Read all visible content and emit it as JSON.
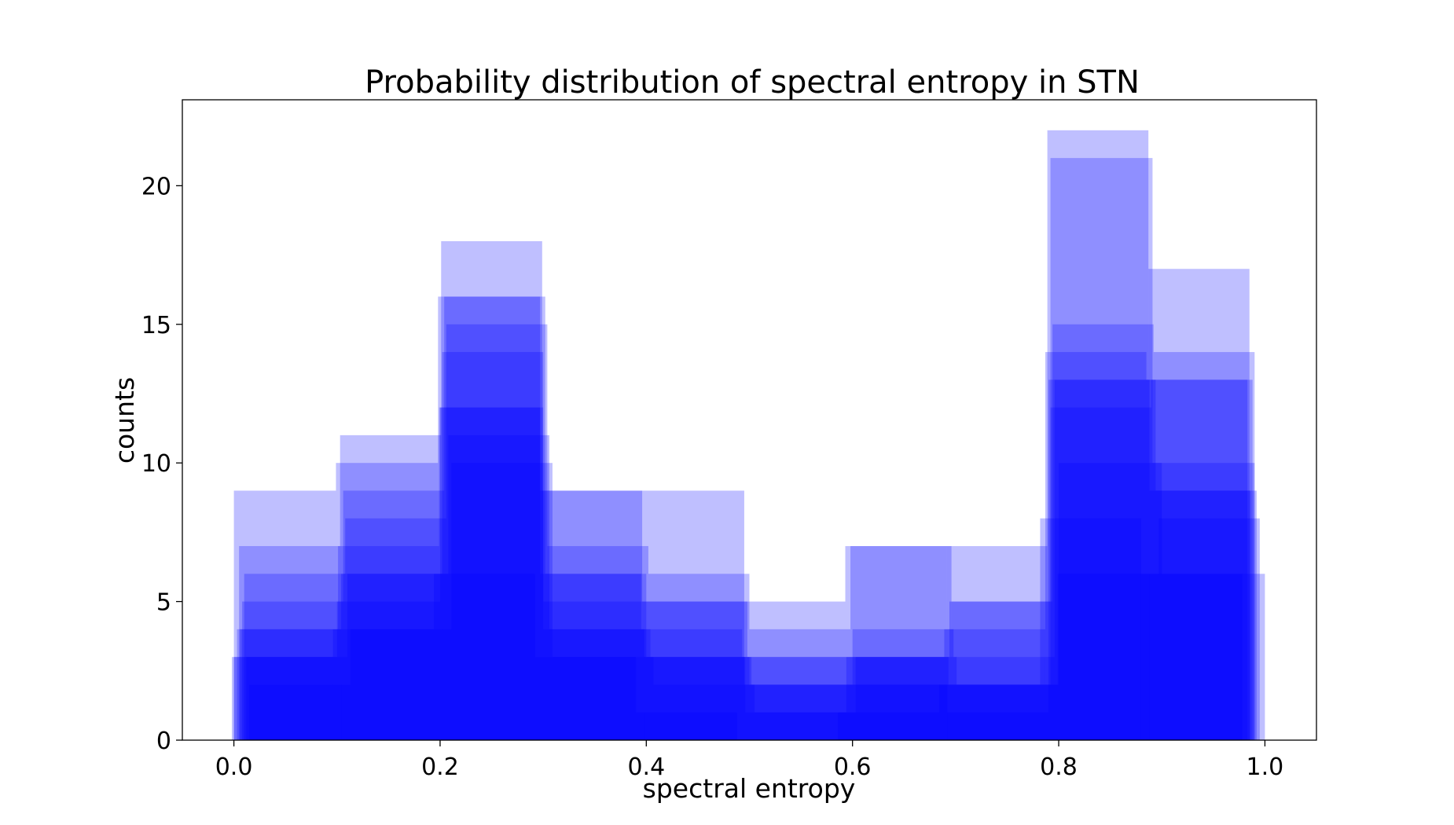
{
  "chart_data": {
    "type": "bar",
    "subtype": "overlaid-histograms",
    "title": "Probability distribution of spectral entropy in STN",
    "xlabel": "spectral entropy",
    "ylabel": "counts",
    "xlim": [
      -0.05,
      1.05
    ],
    "ylim": [
      0,
      23.1
    ],
    "xticks": [
      "0.0",
      "0.2",
      "0.4",
      "0.6",
      "0.8",
      "1.0"
    ],
    "yticks": [
      "0",
      "5",
      "10",
      "15",
      "20"
    ],
    "grid": false,
    "bar_color": "#0000ff",
    "bar_alpha": 0.25,
    "series": [
      {
        "edges": [
          0.0,
          0.099,
          0.198,
          0.297,
          0.396,
          0.495,
          0.594,
          0.693,
          0.792,
          0.891,
          0.99
        ],
        "values": [
          9,
          10,
          16,
          9,
          5,
          2,
          3,
          2,
          21,
          10
        ]
      },
      {
        "edges": [
          0.005,
          0.103,
          0.201,
          0.299,
          0.397,
          0.495,
          0.593,
          0.691,
          0.789,
          0.887,
          0.985
        ],
        "values": [
          7,
          11,
          18,
          9,
          9,
          5,
          7,
          7,
          22,
          17
        ]
      },
      {
        "edges": [
          0.01,
          0.108,
          0.206,
          0.304,
          0.402,
          0.5,
          0.598,
          0.696,
          0.794,
          0.892,
          0.99
        ],
        "values": [
          6,
          8,
          15,
          7,
          6,
          4,
          7,
          5,
          15,
          14
        ]
      },
      {
        "edges": [
          0.003,
          0.101,
          0.199,
          0.297,
          0.395,
          0.493,
          0.591,
          0.689,
          0.787,
          0.885,
          0.983
        ],
        "values": [
          4,
          7,
          12,
          6,
          4,
          3,
          3,
          4,
          14,
          13
        ]
      },
      {
        "edges": [
          0.012,
          0.11,
          0.208,
          0.306,
          0.404,
          0.502,
          0.6,
          0.698,
          0.796,
          0.894,
          0.992
        ],
        "values": [
          3,
          6,
          11,
          4,
          3,
          2,
          4,
          3,
          13,
          9
        ]
      },
      {
        "edges": [
          0.008,
          0.106,
          0.204,
          0.302,
          0.4,
          0.498,
          0.596,
          0.694,
          0.792,
          0.89,
          0.988
        ],
        "values": [
          5,
          9,
          16,
          6,
          5,
          3,
          3,
          5,
          12,
          13
        ]
      },
      {
        "edges": [
          0.015,
          0.113,
          0.211,
          0.309,
          0.407,
          0.505,
          0.603,
          0.701,
          0.799,
          0.897,
          0.995
        ],
        "values": [
          2,
          4,
          10,
          3,
          2,
          1,
          3,
          2,
          6,
          8
        ]
      },
      {
        "edges": [
          0.0,
          0.1,
          0.2,
          0.3,
          0.4,
          0.5,
          0.6,
          0.7,
          0.8,
          0.9,
          1.0
        ],
        "values": [
          3,
          5,
          12,
          5,
          3,
          2,
          2,
          2,
          10,
          6
        ]
      },
      {
        "edges": [
          0.006,
          0.104,
          0.202,
          0.3,
          0.398,
          0.496,
          0.594,
          0.692,
          0.79,
          0.888,
          0.986
        ],
        "values": [
          4,
          6,
          14,
          4,
          3,
          1,
          2,
          1,
          13,
          9
        ]
      },
      {
        "edges": [
          -0.002,
          0.096,
          0.194,
          0.292,
          0.39,
          0.488,
          0.586,
          0.684,
          0.782,
          0.88,
          0.978
        ],
        "values": [
          3,
          4,
          6,
          3,
          1,
          0,
          1,
          2,
          8,
          6
        ]
      }
    ]
  }
}
